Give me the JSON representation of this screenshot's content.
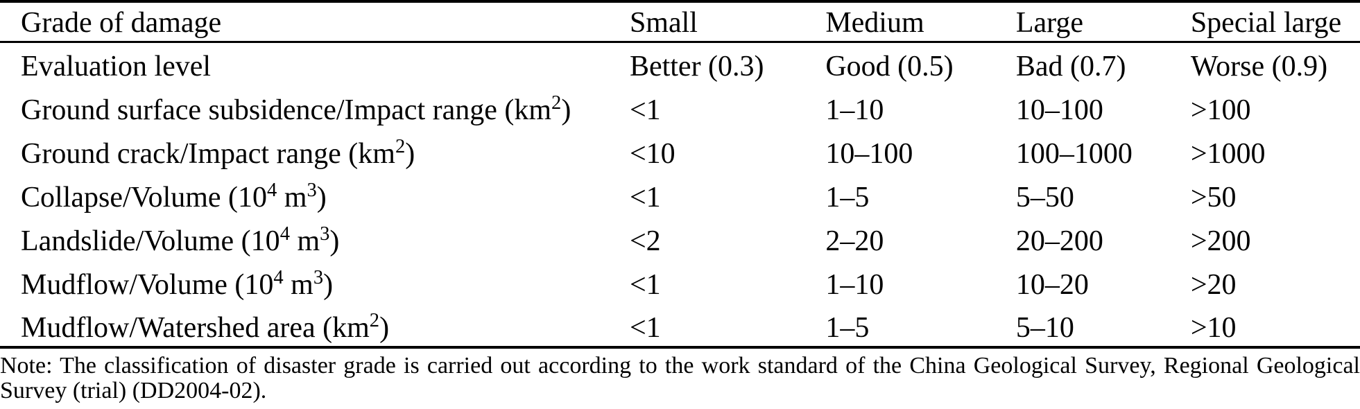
{
  "table": {
    "columns": [
      "Grade of damage",
      "Small",
      "Medium",
      "Large",
      "Special large"
    ],
    "rows": [
      {
        "label": "Evaluation level",
        "values": [
          "Better (0.3)",
          "Good (0.5)",
          "Bad (0.7)",
          "Worse (0.9)"
        ]
      },
      {
        "label": "Ground surface subsidence/Impact range (km²)",
        "values": [
          "<1",
          "1–10",
          "10–100",
          ">100"
        ]
      },
      {
        "label": "Ground crack/Impact range (km²)",
        "values": [
          "<10",
          "10–100",
          "100–1000",
          ">1000"
        ]
      },
      {
        "label": "Collapse/Volume (10⁴ m³)",
        "values": [
          "<1",
          "1–5",
          "5–50",
          ">50"
        ]
      },
      {
        "label": "Landslide/Volume (10⁴ m³)",
        "values": [
          "<2",
          "2–20",
          "20–200",
          ">200"
        ]
      },
      {
        "label": "Mudflow/Volume (10⁴ m³)",
        "values": [
          "<1",
          "1–10",
          "10–20",
          ">20"
        ]
      },
      {
        "label": "Mudflow/Watershed area (km²)",
        "values": [
          "<1",
          "1–5",
          "5–10",
          ">10"
        ]
      }
    ]
  },
  "note": "Note: The classification of disaster grade is carried out according to the work standard of the China Geological Survey, Regional Geological Survey (trial) (DD2004-02).",
  "colors": {
    "text": "#000000",
    "background": "#ffffff",
    "rule": "#000000"
  }
}
